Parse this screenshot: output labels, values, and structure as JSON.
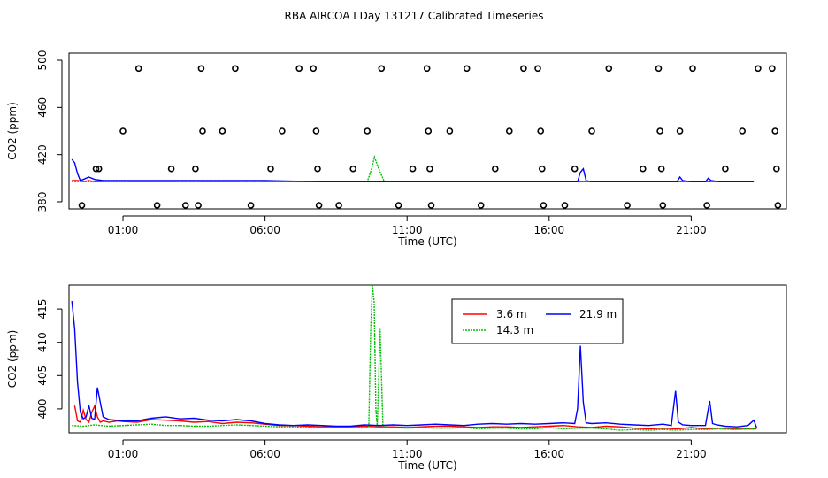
{
  "title": "RBA AIRCOA I  Day 131217  Calibrated Timeseries",
  "chart_data": [
    {
      "type": "line",
      "panel": "top",
      "xlabel": "Time (UTC)",
      "ylabel": "CO2 (ppm)",
      "x_unit": "hours (UTC)",
      "xlim": [
        -0.9,
        24.35
      ],
      "ylim": [
        374,
        506
      ],
      "xticks": [
        1,
        6,
        11,
        16,
        21
      ],
      "xtick_labels": [
        "01:00",
        "06:00",
        "11:00",
        "16:00",
        "21:00"
      ],
      "yticks": [
        380,
        420,
        460,
        500
      ],
      "ytick_labels": [
        "380",
        "420",
        "460",
        "500"
      ],
      "grid": false,
      "marker_color": "#000000",
      "scatter_points": {
        "x": [
          -0.45,
          0.05,
          0.15,
          1.0,
          1.55,
          2.2,
          2.7,
          3.2,
          3.55,
          3.65,
          3.75,
          3.8,
          4.5,
          4.95,
          5.5,
          6.2,
          6.6,
          7.2,
          7.7,
          7.8,
          7.85,
          7.9,
          8.6,
          9.1,
          9.6,
          10.1,
          10.7,
          11.2,
          11.7,
          11.75,
          11.8,
          11.85,
          12.5,
          13.1,
          13.6,
          14.1,
          14.6,
          15.1,
          15.6,
          15.7,
          15.75,
          15.8,
          16.55,
          16.9,
          17.5,
          18.1,
          18.75,
          19.3,
          19.85,
          19.9,
          19.95,
          20.0,
          20.6,
          21.05,
          21.55,
          22.2,
          22.8,
          23.35,
          23.85,
          23.95,
          24.0,
          24.05
        ],
        "y": [
          377,
          408,
          408,
          440,
          493,
          377,
          408,
          377,
          408,
          377,
          493,
          440,
          440,
          493,
          377,
          408,
          440,
          493,
          493,
          440,
          408,
          377,
          377,
          408,
          440,
          493,
          377,
          408,
          493,
          440,
          408,
          377,
          440,
          493,
          377,
          408,
          440,
          493,
          493,
          440,
          408,
          377,
          377,
          408,
          440,
          493,
          377,
          408,
          493,
          440,
          408,
          377,
          440,
          493,
          377,
          408,
          440,
          493,
          493,
          440,
          408,
          377
        ]
      },
      "series": [
        {
          "name": "3.6 m",
          "color": "#ff0000",
          "x": [
            -0.8,
            -0.6,
            -0.4,
            -0.2,
            0.0,
            0.5,
            1.0,
            2.0,
            4.0,
            6.0,
            8.0,
            10.0,
            12.0,
            14.0,
            16.0,
            18.0,
            20.0,
            22.0,
            23.2
          ],
          "y": [
            398,
            398,
            397,
            398,
            397,
            397,
            397,
            397,
            397,
            397,
            397,
            397,
            397,
            397,
            397,
            397,
            397,
            397,
            397
          ]
        },
        {
          "name": "14.3 m",
          "color": "#00c000",
          "x": [
            -0.8,
            0.0,
            2.0,
            4.0,
            6.0,
            8.0,
            9.6,
            9.75,
            9.85,
            10.0,
            10.2,
            12.0,
            14.0,
            16.0,
            18.0,
            20.0,
            22.0,
            23.2
          ],
          "y": [
            397,
            397,
            397,
            397,
            397,
            397,
            397,
            408,
            418,
            408,
            397,
            397,
            397,
            397,
            397,
            397,
            397,
            397
          ]
        },
        {
          "name": "21.9 m",
          "color": "#0000ff",
          "x": [
            -0.8,
            -0.7,
            -0.6,
            -0.5,
            -0.4,
            -0.2,
            0.0,
            0.3,
            1.0,
            2.0,
            4.0,
            6.0,
            8.0,
            10.0,
            12.0,
            14.0,
            16.0,
            17.0,
            17.1,
            17.2,
            17.3,
            17.5,
            18.0,
            20.0,
            20.5,
            20.6,
            20.7,
            21.0,
            21.5,
            21.6,
            21.7,
            22.0,
            23.2
          ],
          "y": [
            416,
            413,
            404,
            398,
            399,
            401,
            399,
            398,
            398,
            398,
            398,
            398,
            397,
            397,
            397,
            397,
            397,
            397,
            405,
            408,
            398,
            397,
            397,
            397,
            397,
            401,
            398,
            397,
            397,
            400,
            398,
            397,
            397
          ]
        }
      ]
    },
    {
      "type": "line",
      "panel": "bottom",
      "xlabel": "Time (UTC)",
      "ylabel": "CO2 (ppm)",
      "x_unit": "hours (UTC)",
      "xlim": [
        -0.9,
        24.35
      ],
      "ylim": [
        396.4,
        418.6
      ],
      "xticks": [
        1,
        6,
        11,
        16,
        21
      ],
      "xtick_labels": [
        "01:00",
        "06:00",
        "11:00",
        "16:00",
        "21:00"
      ],
      "yticks": [
        400,
        405,
        410,
        415
      ],
      "ytick_labels": [
        "400",
        "405",
        "410",
        "415"
      ],
      "grid": false,
      "legend": {
        "position": "top-center",
        "entries": [
          "3.6 m",
          "14.3 m",
          "21.9 m"
        ]
      },
      "series": [
        {
          "name": "3.6 m",
          "color": "#ff0000",
          "x": [
            -0.7,
            -0.6,
            -0.5,
            -0.4,
            -0.3,
            -0.2,
            -0.1,
            0.0,
            0.1,
            0.2,
            0.3,
            0.5,
            0.8,
            1.0,
            1.5,
            2.0,
            2.5,
            3.0,
            3.5,
            4.0,
            4.5,
            5.0,
            5.5,
            6.0,
            6.5,
            7.0,
            7.5,
            8.0,
            8.5,
            9.0,
            9.5,
            10.0,
            10.5,
            11.0,
            11.5,
            12.0,
            12.5,
            13.0,
            13.5,
            14.0,
            14.5,
            15.0,
            15.5,
            16.0,
            16.5,
            17.0,
            17.5,
            18.0,
            18.5,
            19.0,
            19.5,
            20.0,
            20.5,
            21.0,
            21.5,
            22.0,
            22.5,
            23.0,
            23.3
          ],
          "y": [
            400.5,
            398.2,
            398.0,
            399.8,
            398.4,
            398.0,
            399.5,
            400.4,
            398.8,
            398.0,
            398.2,
            398.0,
            398.2,
            398.1,
            398.0,
            398.4,
            398.3,
            398.2,
            398.0,
            398.1,
            397.8,
            398.0,
            397.9,
            397.7,
            397.5,
            397.5,
            397.4,
            397.3,
            397.3,
            397.3,
            397.4,
            397.3,
            397.3,
            397.2,
            397.3,
            397.4,
            397.4,
            397.3,
            397.2,
            397.3,
            397.3,
            397.2,
            397.3,
            397.4,
            397.5,
            397.3,
            397.2,
            397.4,
            397.3,
            397.1,
            397.0,
            397.1,
            397.0,
            397.2,
            397.0,
            397.1,
            397.0,
            397.0,
            397.0
          ]
        },
        {
          "name": "14.3 m",
          "color": "#00c000",
          "x": [
            -0.8,
            -0.4,
            0.0,
            0.5,
            1.0,
            1.5,
            2.0,
            2.5,
            3.0,
            3.5,
            4.0,
            4.5,
            5.0,
            5.5,
            6.0,
            6.5,
            7.0,
            7.5,
            8.0,
            8.5,
            9.0,
            9.5,
            9.65,
            9.72,
            9.78,
            9.84,
            9.9,
            9.95,
            10.05,
            10.15,
            10.3,
            11.0,
            11.5,
            12.0,
            12.5,
            13.0,
            13.5,
            14.0,
            14.5,
            15.0,
            15.5,
            16.0,
            16.5,
            17.0,
            17.5,
            18.0,
            18.5,
            19.0,
            19.5,
            20.0,
            20.5,
            21.0,
            21.5,
            22.0,
            22.5,
            23.0,
            23.3
          ],
          "y": [
            397.5,
            397.4,
            397.6,
            397.4,
            397.5,
            397.6,
            397.7,
            397.5,
            397.5,
            397.4,
            397.4,
            397.5,
            397.6,
            397.5,
            397.4,
            397.3,
            397.3,
            397.2,
            397.2,
            397.2,
            397.2,
            397.2,
            397.3,
            412.0,
            418.5,
            416.0,
            400.0,
            397.3,
            412.0,
            397.4,
            397.2,
            397.1,
            397.2,
            397.1,
            397.1,
            397.2,
            397.0,
            397.1,
            397.1,
            397.0,
            397.0,
            397.2,
            397.0,
            397.1,
            397.1,
            397.0,
            396.8,
            396.9,
            396.8,
            396.9,
            396.8,
            396.9,
            396.9,
            397.0,
            396.9,
            397.0,
            397.0
          ]
        },
        {
          "name": "21.9 m",
          "color": "#0000ff",
          "x": [
            -0.8,
            -0.7,
            -0.6,
            -0.5,
            -0.4,
            -0.3,
            -0.2,
            -0.1,
            0.0,
            0.1,
            0.2,
            0.3,
            0.5,
            1.0,
            1.5,
            2.0,
            2.5,
            3.0,
            3.5,
            4.0,
            4.5,
            5.0,
            5.5,
            6.0,
            6.5,
            7.0,
            7.5,
            8.0,
            8.5,
            9.0,
            9.5,
            10.0,
            10.5,
            11.0,
            11.5,
            12.0,
            12.5,
            13.0,
            13.5,
            14.0,
            14.5,
            15.0,
            15.5,
            16.0,
            16.5,
            16.9,
            17.0,
            17.1,
            17.2,
            17.3,
            17.5,
            18.0,
            18.5,
            19.0,
            19.5,
            20.0,
            20.3,
            20.45,
            20.55,
            20.7,
            21.0,
            21.5,
            21.65,
            21.75,
            21.9,
            22.2,
            22.6,
            23.0,
            23.2,
            23.3
          ],
          "y": [
            416.2,
            412.0,
            404.0,
            399.5,
            398.5,
            398.8,
            400.5,
            398.6,
            398.4,
            403.2,
            401.0,
            398.8,
            398.4,
            398.2,
            398.2,
            398.6,
            398.8,
            398.5,
            398.6,
            398.3,
            398.2,
            398.4,
            398.2,
            397.8,
            397.6,
            397.5,
            397.6,
            397.5,
            397.4,
            397.4,
            397.6,
            397.5,
            397.6,
            397.5,
            397.6,
            397.7,
            397.6,
            397.5,
            397.7,
            397.8,
            397.7,
            397.8,
            397.7,
            397.8,
            397.9,
            397.8,
            400.0,
            409.5,
            401.0,
            397.9,
            397.8,
            397.9,
            397.7,
            397.6,
            397.5,
            397.7,
            397.5,
            402.7,
            398.0,
            397.6,
            397.5,
            397.5,
            401.2,
            397.8,
            397.6,
            397.4,
            397.3,
            397.5,
            398.3,
            397.2
          ]
        }
      ]
    }
  ]
}
